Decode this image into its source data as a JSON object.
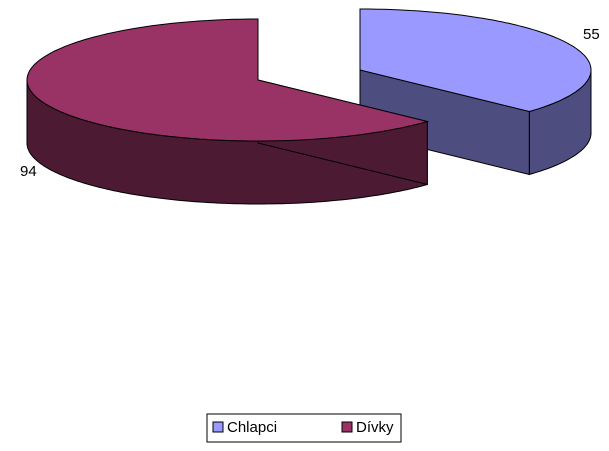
{
  "chart_data": {
    "type": "pie",
    "categories": [
      "Chlapci",
      "Dívky"
    ],
    "values": [
      55,
      94
    ],
    "colors": [
      "#9999ff",
      "#993366"
    ]
  }
}
